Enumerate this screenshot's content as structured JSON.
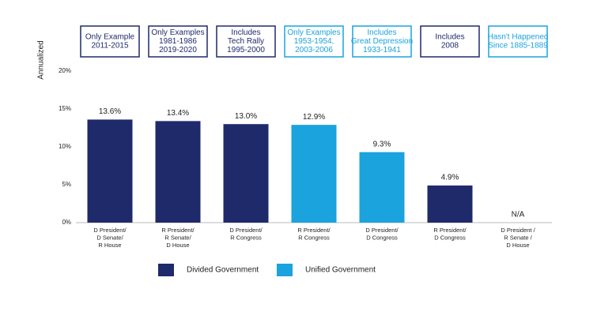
{
  "chart_data": {
    "type": "bar",
    "y_axis_label": "Annualized",
    "annotations": [
      {
        "lines": [
          "Only Example",
          "2011-2015"
        ],
        "color": "#1f2a6b"
      },
      {
        "lines": [
          "Only Examples",
          "1981-1986",
          "2019-2020"
        ],
        "color": "#1f2a6b"
      },
      {
        "lines": [
          "Includes",
          "Tech Rally",
          "1995-2000"
        ],
        "color": "#1f2a6b"
      },
      {
        "lines": [
          "Only Examples",
          "1953-1954,",
          "2003-2006"
        ],
        "color": "#1aa3dd"
      },
      {
        "lines": [
          "Includes",
          "Great Depression",
          "1933-1941"
        ],
        "color": "#1aa3dd"
      },
      {
        "lines": [
          "Includes",
          "2008"
        ],
        "color": "#1f2a6b"
      },
      {
        "lines": [
          "Hasn't Happened",
          "Since 1885-1889"
        ],
        "color": "#1aa3dd"
      }
    ],
    "categories": [
      [
        "D President/",
        "D Senate/",
        "R House"
      ],
      [
        "R President/",
        "R Senate/",
        "D House"
      ],
      [
        "D President/",
        "R Congress"
      ],
      [
        "R President/",
        "R Congress"
      ],
      [
        "D President/",
        "D Congress"
      ],
      [
        "R President/",
        "D Congress"
      ],
      [
        "D President /",
        "R Senate /",
        "D House"
      ]
    ],
    "values": [
      13.6,
      13.4,
      13.0,
      12.9,
      9.3,
      4.9,
      null
    ],
    "value_labels": [
      "13.6%",
      "13.4%",
      "13.0%",
      "12.9%",
      "9.3%",
      "4.9%",
      "N/A"
    ],
    "colors": [
      "#1f2a6b",
      "#1f2a6b",
      "#1f2a6b",
      "#1aa3dd",
      "#1aa3dd",
      "#1f2a6b",
      "#1f2a6b"
    ],
    "legend": [
      {
        "name": "Divided Government",
        "color": "#1f2a6b"
      },
      {
        "name": "Unified Government",
        "color": "#1aa3dd"
      }
    ],
    "ylim": [
      0,
      20
    ],
    "yticks": [
      {
        "value": 0,
        "label": "0%"
      },
      {
        "value": 5,
        "label": "5%"
      },
      {
        "value": 10,
        "label": "10%"
      },
      {
        "value": 15,
        "label": "15%"
      },
      {
        "value": 20,
        "label": "20%"
      }
    ]
  }
}
